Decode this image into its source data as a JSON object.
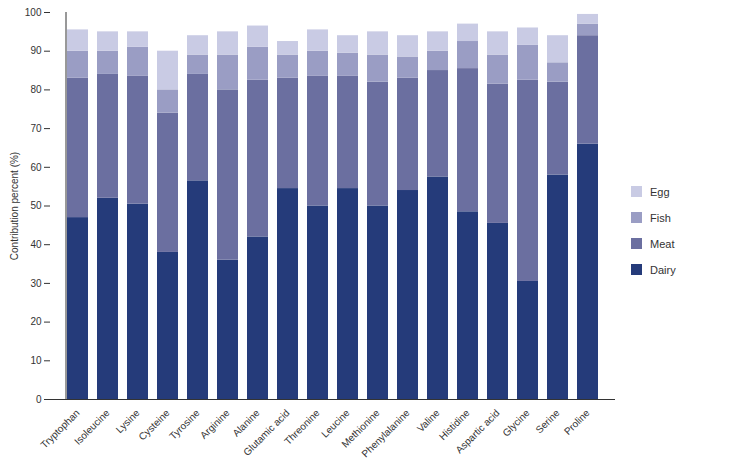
{
  "chart_data": {
    "type": "bar",
    "stacked": true,
    "legend": "right",
    "grid": false,
    "y_label": "Contribution percent (%)",
    "ylim": [
      0,
      100
    ],
    "yticks": [
      0,
      10,
      20,
      30,
      40,
      50,
      60,
      70,
      80,
      90,
      100
    ],
    "categories": [
      "Tryptophan",
      "Isoleucine",
      "Lysine",
      "Cysteine",
      "Tyrosine",
      "Arginine",
      "Alanine",
      "Glutamic acid",
      "Threonine",
      "Leucine",
      "Methionine",
      "Phenylalanine",
      "Valine",
      "Histidine",
      "Aspartic acid",
      "Glycine",
      "Serine",
      "Proline"
    ],
    "series": [
      {
        "name": "Dairy",
        "color": "#253b7a",
        "values": [
          47,
          52,
          50.5,
          38,
          56.5,
          36,
          42,
          54.5,
          50,
          54.5,
          50,
          54,
          57.5,
          48.5,
          45.5,
          30.5,
          58,
          66
        ]
      },
      {
        "name": "Meat",
        "color": "#6b6fa0",
        "values": [
          36,
          32,
          33,
          36,
          27.5,
          44,
          40.5,
          28.5,
          33.5,
          29,
          32,
          29,
          27.5,
          37,
          36,
          52,
          24,
          28
        ]
      },
      {
        "name": "Fish",
        "color": "#9a9dc4",
        "values": [
          7,
          6,
          7.5,
          6,
          5,
          9,
          8.5,
          6,
          6.5,
          6,
          7,
          5.5,
          5,
          7,
          7.5,
          9,
          5,
          3
        ]
      },
      {
        "name": "Egg",
        "color": "#c9cbe4",
        "values": [
          5.5,
          5,
          4,
          10,
          5,
          6,
          5.5,
          3.5,
          5.5,
          4.5,
          6,
          5.5,
          5,
          4.5,
          6,
          4.5,
          7,
          2.5
        ]
      }
    ]
  }
}
